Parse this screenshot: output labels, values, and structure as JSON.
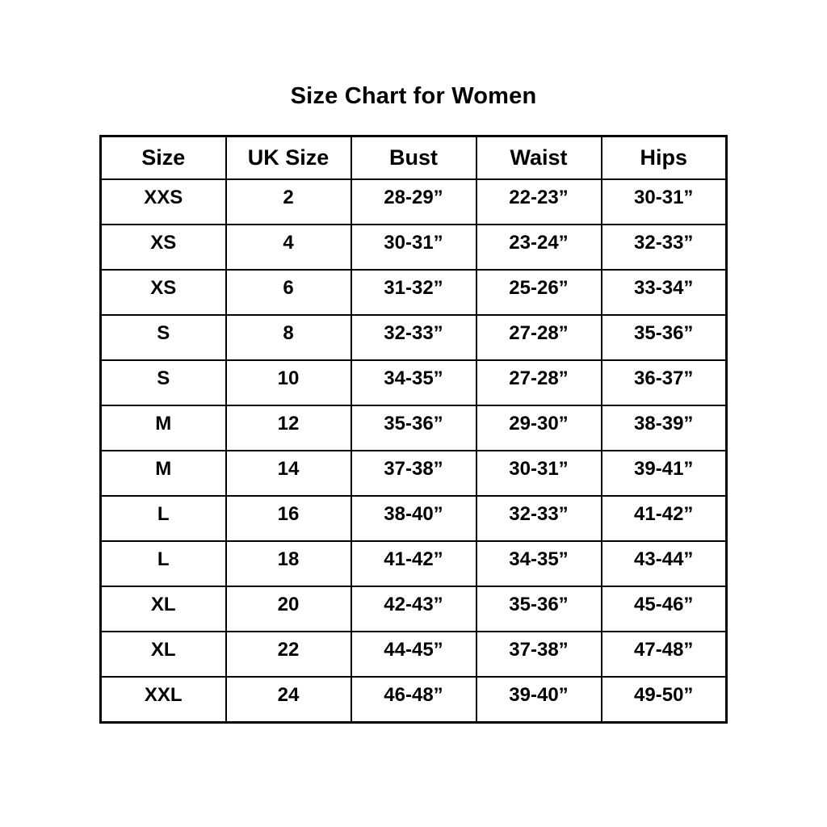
{
  "page": {
    "title": "Size Chart for Women"
  },
  "chart_data": {
    "type": "table",
    "title": "Size Chart for Women",
    "columns": [
      "Size",
      "UK Size",
      "Bust",
      "Waist",
      "Hips"
    ],
    "rows": [
      [
        "XXS",
        "2",
        "28-29”",
        "22-23”",
        "30-31”"
      ],
      [
        "XS",
        "4",
        "30-31”",
        "23-24”",
        "32-33”"
      ],
      [
        "XS",
        "6",
        "31-32”",
        "25-26”",
        "33-34”"
      ],
      [
        "S",
        "8",
        "32-33”",
        "27-28”",
        "35-36”"
      ],
      [
        "S",
        "10",
        "34-35”",
        "27-28”",
        "36-37”"
      ],
      [
        "M",
        "12",
        "35-36”",
        "29-30”",
        "38-39”"
      ],
      [
        "M",
        "14",
        "37-38”",
        "30-31”",
        "39-41”"
      ],
      [
        "L",
        "16",
        "38-40”",
        "32-33”",
        "41-42”"
      ],
      [
        "L",
        "18",
        "41-42”",
        "34-35”",
        "43-44”"
      ],
      [
        "XL",
        "20",
        "42-43”",
        "35-36”",
        "45-46”"
      ],
      [
        "XL",
        "22",
        "44-45”",
        "37-38”",
        "47-48”"
      ],
      [
        "XXL",
        "24",
        "46-48”",
        "39-40”",
        "49-50”"
      ]
    ],
    "layout": {
      "grid": "on",
      "text_weight": "bold",
      "alignment": "center"
    }
  },
  "colors": {
    "background": "#ffffff",
    "text": "#000000",
    "border": "#000000"
  }
}
